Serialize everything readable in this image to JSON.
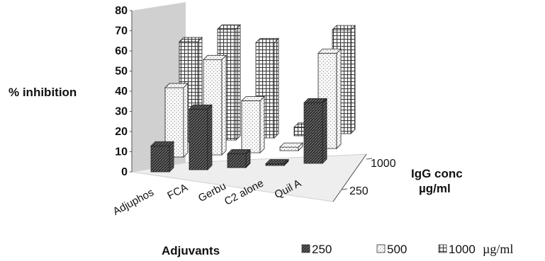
{
  "chart_data": {
    "type": "bar",
    "style": "3d-grouped",
    "title": "",
    "xlabel": "Adjuvants",
    "ylabel": "% inhibition",
    "zlabel_line1": "IgG conc",
    "zlabel_line2": "µg/ml",
    "ylim": [
      0,
      80
    ],
    "yticks": [
      "0",
      "10",
      "20",
      "30",
      "40",
      "50",
      "60",
      "70",
      "80"
    ],
    "categories": [
      "Adjuphos",
      "FCA",
      "Gerbu",
      "C2 alone",
      "Quil A"
    ],
    "depth_ticks": [
      "250",
      "1000"
    ],
    "series": [
      {
        "name": "250",
        "values": [
          15,
          35,
          8,
          1,
          35
        ]
      },
      {
        "name": "500",
        "values": [
          40,
          55,
          30,
          2,
          55
        ]
      },
      {
        "name": "1000",
        "values": [
          58,
          64,
          55,
          5,
          60
        ]
      }
    ],
    "legend_unit": "µg/ml",
    "legend_position": "bottom-right",
    "colors": {
      "s250": "#2f2f2f",
      "s500": "#f2f2f2",
      "s1000": "#dcdcdc"
    }
  }
}
